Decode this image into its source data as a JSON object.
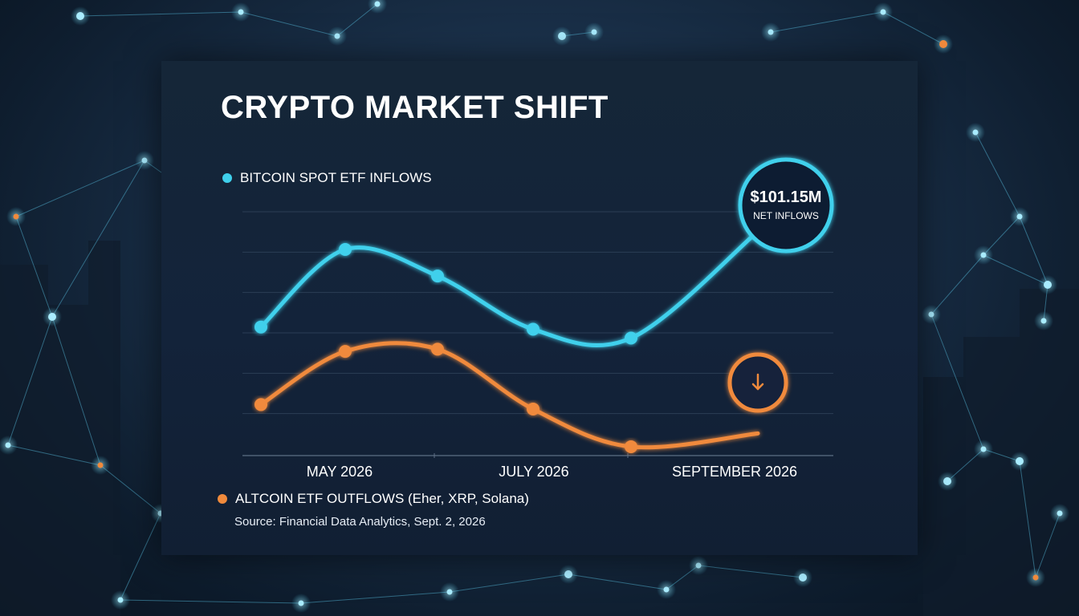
{
  "title": "CRYPTO MARKET SHIFT",
  "source": "Source: Financial Data Analytics, Sept. 2, 2026",
  "colors": {
    "bitcoin": "#3fd0ec",
    "altcoin": "#f08a3c",
    "panel": "#142438",
    "grid": "#2b3e55"
  },
  "callout_bitcoin": {
    "value": "$101.15M",
    "label": "NET INFLOWS"
  },
  "callout_altcoin": {
    "icon": "arrow-down-icon"
  },
  "chart_data": {
    "type": "line",
    "title": "CRYPTO MARKET SHIFT",
    "x_tick_labels": [
      "MAY 2026",
      "JULY 2026",
      "SEPTEMBER 2026"
    ],
    "grid": true,
    "legend_placement": "top-left and bottom-left",
    "series": [
      {
        "name": "BITCOIN SPOT ETF INFLOWS",
        "values": [
          58,
          93,
          81,
          57,
          53,
          101.15
        ]
      },
      {
        "name": "ALTCOIN ETF OUTFLOWS (Eher, XRP, Solana)",
        "values": [
          23,
          47,
          48,
          21,
          4,
          10
        ]
      }
    ],
    "ylim": [
      0,
      110
    ],
    "annotations": [
      {
        "series": 0,
        "point": 5,
        "text": "$101.15M NET INFLOWS"
      },
      {
        "series": 1,
        "point": 5,
        "text": "down arrow"
      }
    ]
  }
}
